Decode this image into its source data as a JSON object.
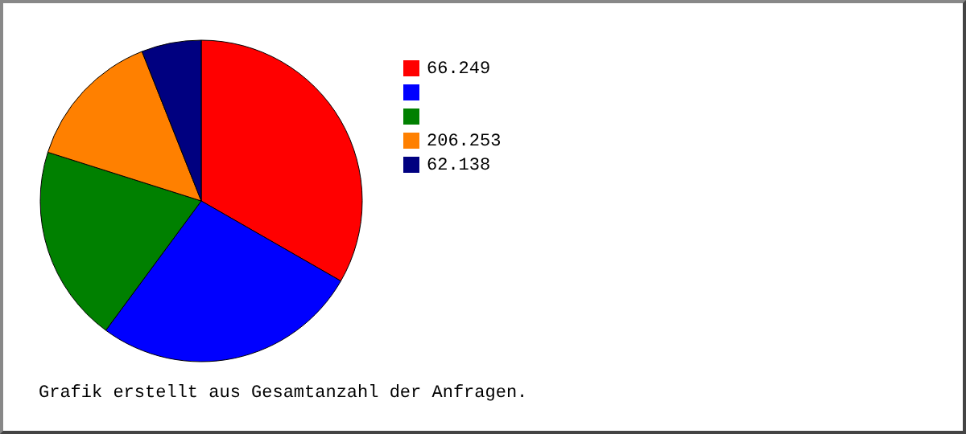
{
  "chart_data": {
    "type": "pie",
    "categories": [
      "66.249",
      null,
      null,
      "206.253",
      "62.138"
    ],
    "values": [
      33.3,
      26.8,
      19.8,
      14.1,
      6.0
    ],
    "colors": [
      "#ff0000",
      "#0000ff",
      "#008000",
      "#ff8000",
      "#000080"
    ],
    "legend": "right",
    "annotations": [
      "Grafik erstellt aus Gesamtanzahl der Anfragen."
    ]
  }
}
